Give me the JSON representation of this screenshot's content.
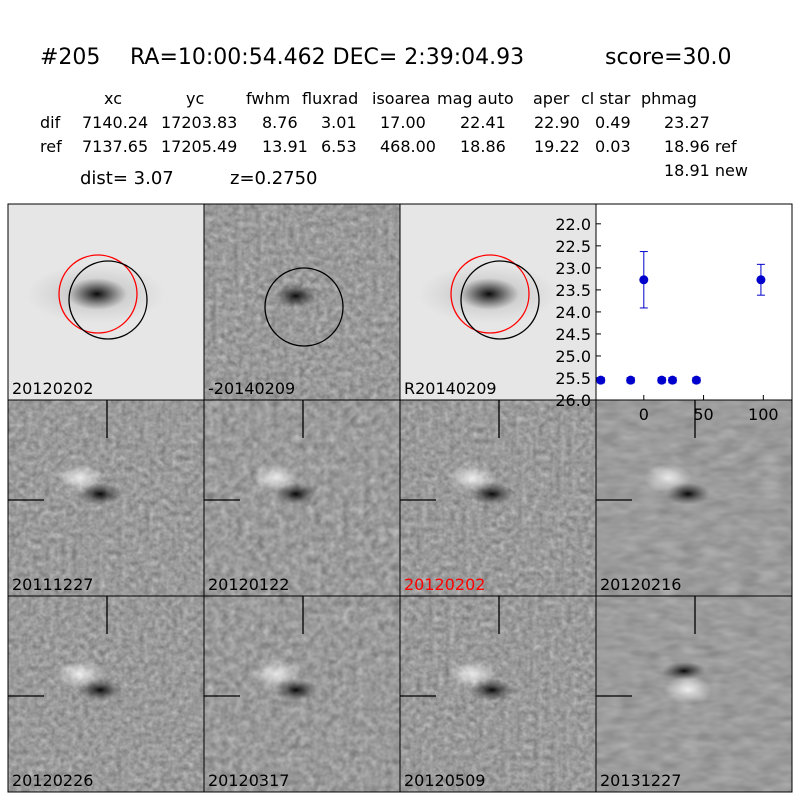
{
  "header": {
    "id": "#205",
    "coords": "RA=10:00:54.462 DEC= 2:39:04.93",
    "score": "score=30.0"
  },
  "table": {
    "columns": [
      "xc",
      "yc",
      "fwhm",
      "fluxrad",
      "isoarea",
      "mag auto",
      "aper",
      "cl star",
      "phmag"
    ],
    "rows": [
      {
        "label": "dif",
        "cells": [
          "7140.24",
          "17203.83",
          "8.76",
          "3.01",
          "17.00",
          "22.41",
          "22.90",
          "0.49",
          "23.27"
        ]
      },
      {
        "label": "ref",
        "cells": [
          "7137.65",
          "17205.49",
          "13.91",
          "6.53",
          "468.00",
          "18.86",
          "19.22",
          "0.03",
          "18.96 ref"
        ]
      }
    ],
    "note": "18.91 new"
  },
  "dist": "dist=  3.07",
  "redshift": "z=0.2750",
  "panels": [
    {
      "label": "20120202",
      "color": "#000000"
    },
    {
      "label": "-20140209",
      "color": "#000000"
    },
    {
      "label": "R20140209",
      "color": "#000000"
    },
    {
      "label": "20111227",
      "color": "#000000"
    },
    {
      "label": "20120122",
      "color": "#000000"
    },
    {
      "label": "20120202",
      "color": "#ff0000"
    },
    {
      "label": "20120216",
      "color": "#000000"
    },
    {
      "label": "20120226",
      "color": "#000000"
    },
    {
      "label": "20120317",
      "color": "#000000"
    },
    {
      "label": "20120509",
      "color": "#000000"
    },
    {
      "label": "20131227",
      "color": "#000000"
    }
  ],
  "chart_data": {
    "type": "scatter",
    "color": "#0000cc",
    "x": [
      -36,
      -11,
      15,
      24,
      44,
      0,
      98
    ],
    "values": [
      25.55,
      25.55,
      25.55,
      25.55,
      25.55,
      23.27,
      23.27
    ],
    "errors": [
      0.06,
      0.06,
      0.06,
      0.06,
      0.06,
      0.64,
      0.35
    ],
    "xlim": [
      -40,
      124
    ],
    "ylim": [
      26.0,
      21.55
    ],
    "xticks": [
      0,
      50,
      100
    ],
    "yticks": [
      {
        "value": 22.0,
        "label": "22.0"
      },
      {
        "value": 22.5,
        "label": "22.5"
      },
      {
        "value": 23.0,
        "label": "23.0"
      },
      {
        "value": 23.5,
        "label": "23.5"
      },
      {
        "value": 24.0,
        "label": "24.0"
      },
      {
        "value": 24.5,
        "label": "24.5"
      },
      {
        "value": 25.0,
        "label": "25.0"
      },
      {
        "value": 25.5,
        "label": "25.5"
      },
      {
        "value": 26.0,
        "label": "26.0"
      }
    ]
  }
}
